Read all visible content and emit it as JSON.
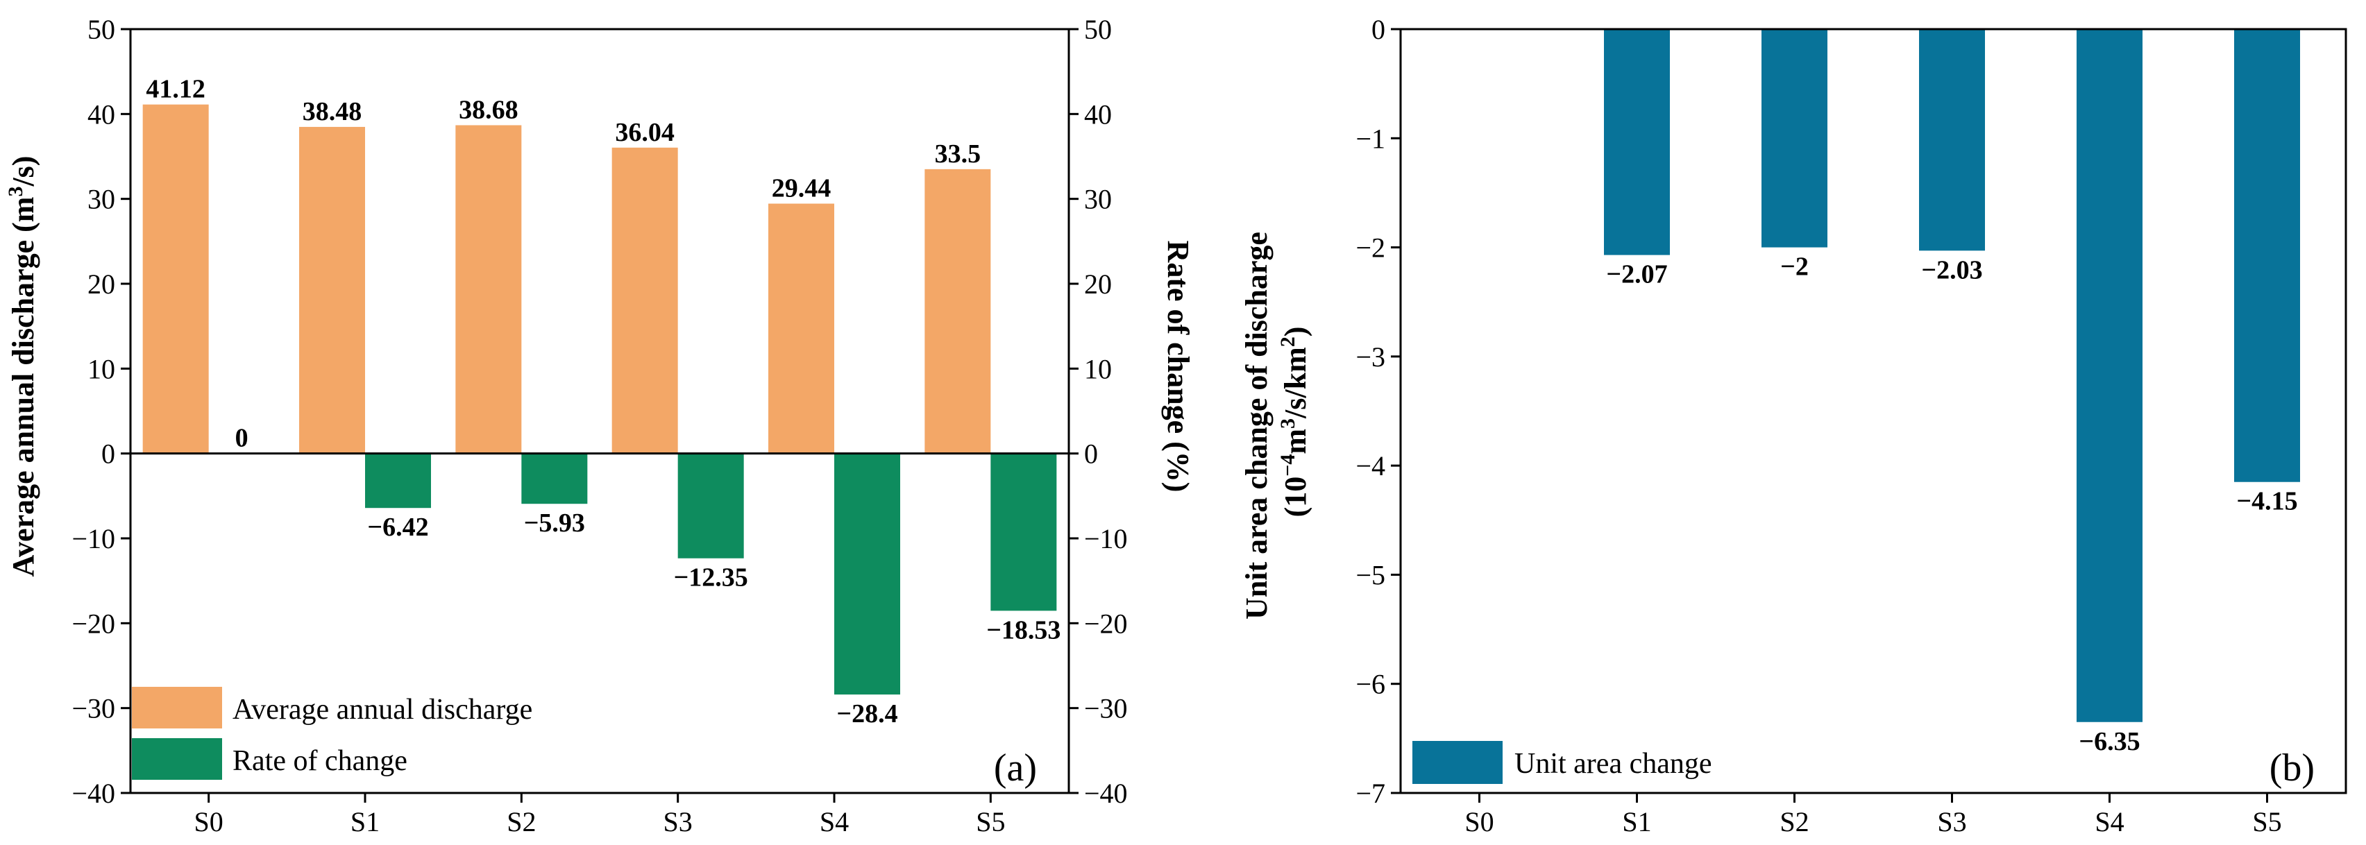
{
  "chart_data": [
    {
      "type": "bar",
      "panel_label": "(a)",
      "categories": [
        "S0",
        "S1",
        "S2",
        "S3",
        "S4",
        "S5"
      ],
      "series": [
        {
          "name": "Average annual discharge",
          "axis": "left",
          "color": "#f3a767",
          "values": [
            41.12,
            38.48,
            38.68,
            36.04,
            29.44,
            33.5
          ],
          "labels": [
            "41.12",
            "38.48",
            "38.68",
            "36.04",
            "29.44",
            "33.5"
          ]
        },
        {
          "name": "Rate of change",
          "axis": "right",
          "color": "#0e8c5e",
          "values": [
            0,
            -6.42,
            -5.93,
            -12.35,
            -28.4,
            -18.53
          ],
          "labels": [
            "0",
            "−6.42",
            "−5.93",
            "−12.35",
            "−28.4",
            "−18.53"
          ]
        }
      ],
      "ylabel_left": {
        "text": "Average annual discharge (m",
        "sup": "3",
        "tail": "/s)"
      },
      "ylabel_right": "Rate of change (%)",
      "ylim": [
        -40,
        50
      ],
      "yticks": [
        -40,
        -30,
        -20,
        -10,
        0,
        10,
        20,
        30,
        40,
        50
      ],
      "ytick_labels": [
        "−40",
        "−30",
        "−20",
        "−10",
        "0",
        "10",
        "20",
        "30",
        "40",
        "50"
      ],
      "legend": "bottom-left",
      "zero_line": true,
      "grid": false
    },
    {
      "type": "bar",
      "panel_label": "(b)",
      "categories": [
        "S0",
        "S1",
        "S2",
        "S3",
        "S4",
        "S5"
      ],
      "series": [
        {
          "name": "Unit area change",
          "color": "#087399",
          "values": [
            null,
            -2.07,
            -2.0,
            -2.03,
            -6.35,
            -4.15
          ],
          "labels": [
            "",
            "−2.07",
            "−2",
            "−2.03",
            "−6.35",
            "−4.15"
          ]
        }
      ],
      "ylabel_line1": "Unit area change of discharge",
      "ylabel_line2": {
        "pre": "(10",
        "sup1": "−4",
        "mid": "m",
        "sup2": "3",
        "mid2": "/s/km",
        "sup3": "2",
        "tail": ")"
      },
      "ylim": [
        -7,
        0
      ],
      "yticks": [
        -7,
        -6,
        -5,
        -4,
        -3,
        -2,
        -1,
        0
      ],
      "ytick_labels": [
        "−7",
        "−6",
        "−5",
        "−4",
        "−3",
        "−2",
        "−1",
        "0"
      ],
      "legend": "bottom-left",
      "grid": false
    }
  ]
}
